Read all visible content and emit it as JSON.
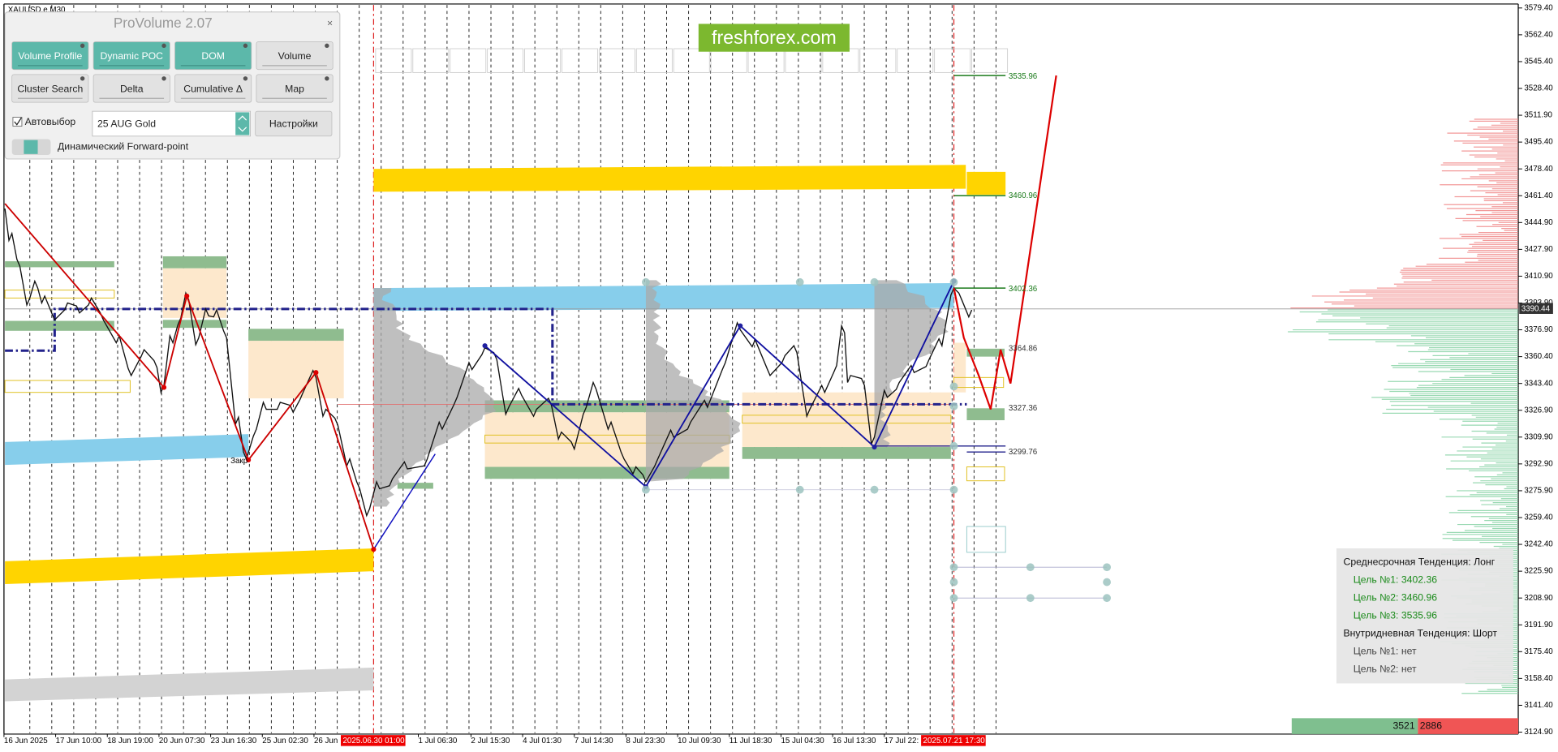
{
  "chart_header": {
    "symbol": "XAUUSD.e,M30"
  },
  "panel": {
    "title": "ProVolume 2.07",
    "buttons": [
      "Volume Profile",
      "Dynamic POC",
      "DOM",
      "Volume",
      "Cluster Search",
      "Delta",
      "Cumulative Δ",
      "Map"
    ],
    "autoselect": "Автовыбор",
    "instrument": "25 AUG Gold",
    "settings": "Настройки",
    "forward_point": "Динамический Forward-point"
  },
  "watermark": "freshforex.com",
  "price_axis": {
    "ticks": [
      "3579.40",
      "3562.40",
      "3545.40",
      "3528.40",
      "3511.90",
      "3495.40",
      "3478.40",
      "3461.40",
      "3444.90",
      "3427.90",
      "3410.90",
      "3393.90",
      "3376.90",
      "3360.40",
      "3343.40",
      "3326.90",
      "3309.90",
      "3292.90",
      "3275.90",
      "3259.40",
      "3242.40",
      "3225.90",
      "3208.90",
      "3191.90",
      "3175.40",
      "3158.40",
      "3141.40",
      "3124.90"
    ],
    "current_price": "3390.44"
  },
  "time_axis": {
    "labels": [
      "16 Jun 2025",
      "17 Jun 10:00",
      "18 Jun 19:00",
      "20 Jun 07:30",
      "23 Jun 16:30",
      "25 Jun 02:30",
      "26 Jun",
      "1 Jul 06:30",
      "2 Jul 15:30",
      "4 Jul 01:30",
      "7 Jul 14:30",
      "8 Jul 23:30",
      "10 Jul 09:30",
      "11 Jul 18:30",
      "15 Jul 04:30",
      "16 Jul 13:30",
      "17 Jul 22:"
    ],
    "markers": [
      "2025.06.30 01:00",
      "2025.07.21 17:30"
    ]
  },
  "levels": [
    "3535.96",
    "3460.96",
    "3402.36",
    "3364.86",
    "3327.36",
    "3299.76"
  ],
  "close_label": "Закр",
  "trend_box": {
    "medium_term": "Среднесрочная Тенденция: Лонг",
    "medium_targets": [
      "Цель №1: 3402.36",
      "Цель №2: 3460.96",
      "Цель №3: 3535.96"
    ],
    "intraday": "Внутридневная Тенденция: Шорт",
    "intraday_targets": [
      "Цель №1: нет",
      "Цель №2: нет"
    ]
  },
  "volume_balance": {
    "buy": "3521",
    "sell": "2886"
  }
}
